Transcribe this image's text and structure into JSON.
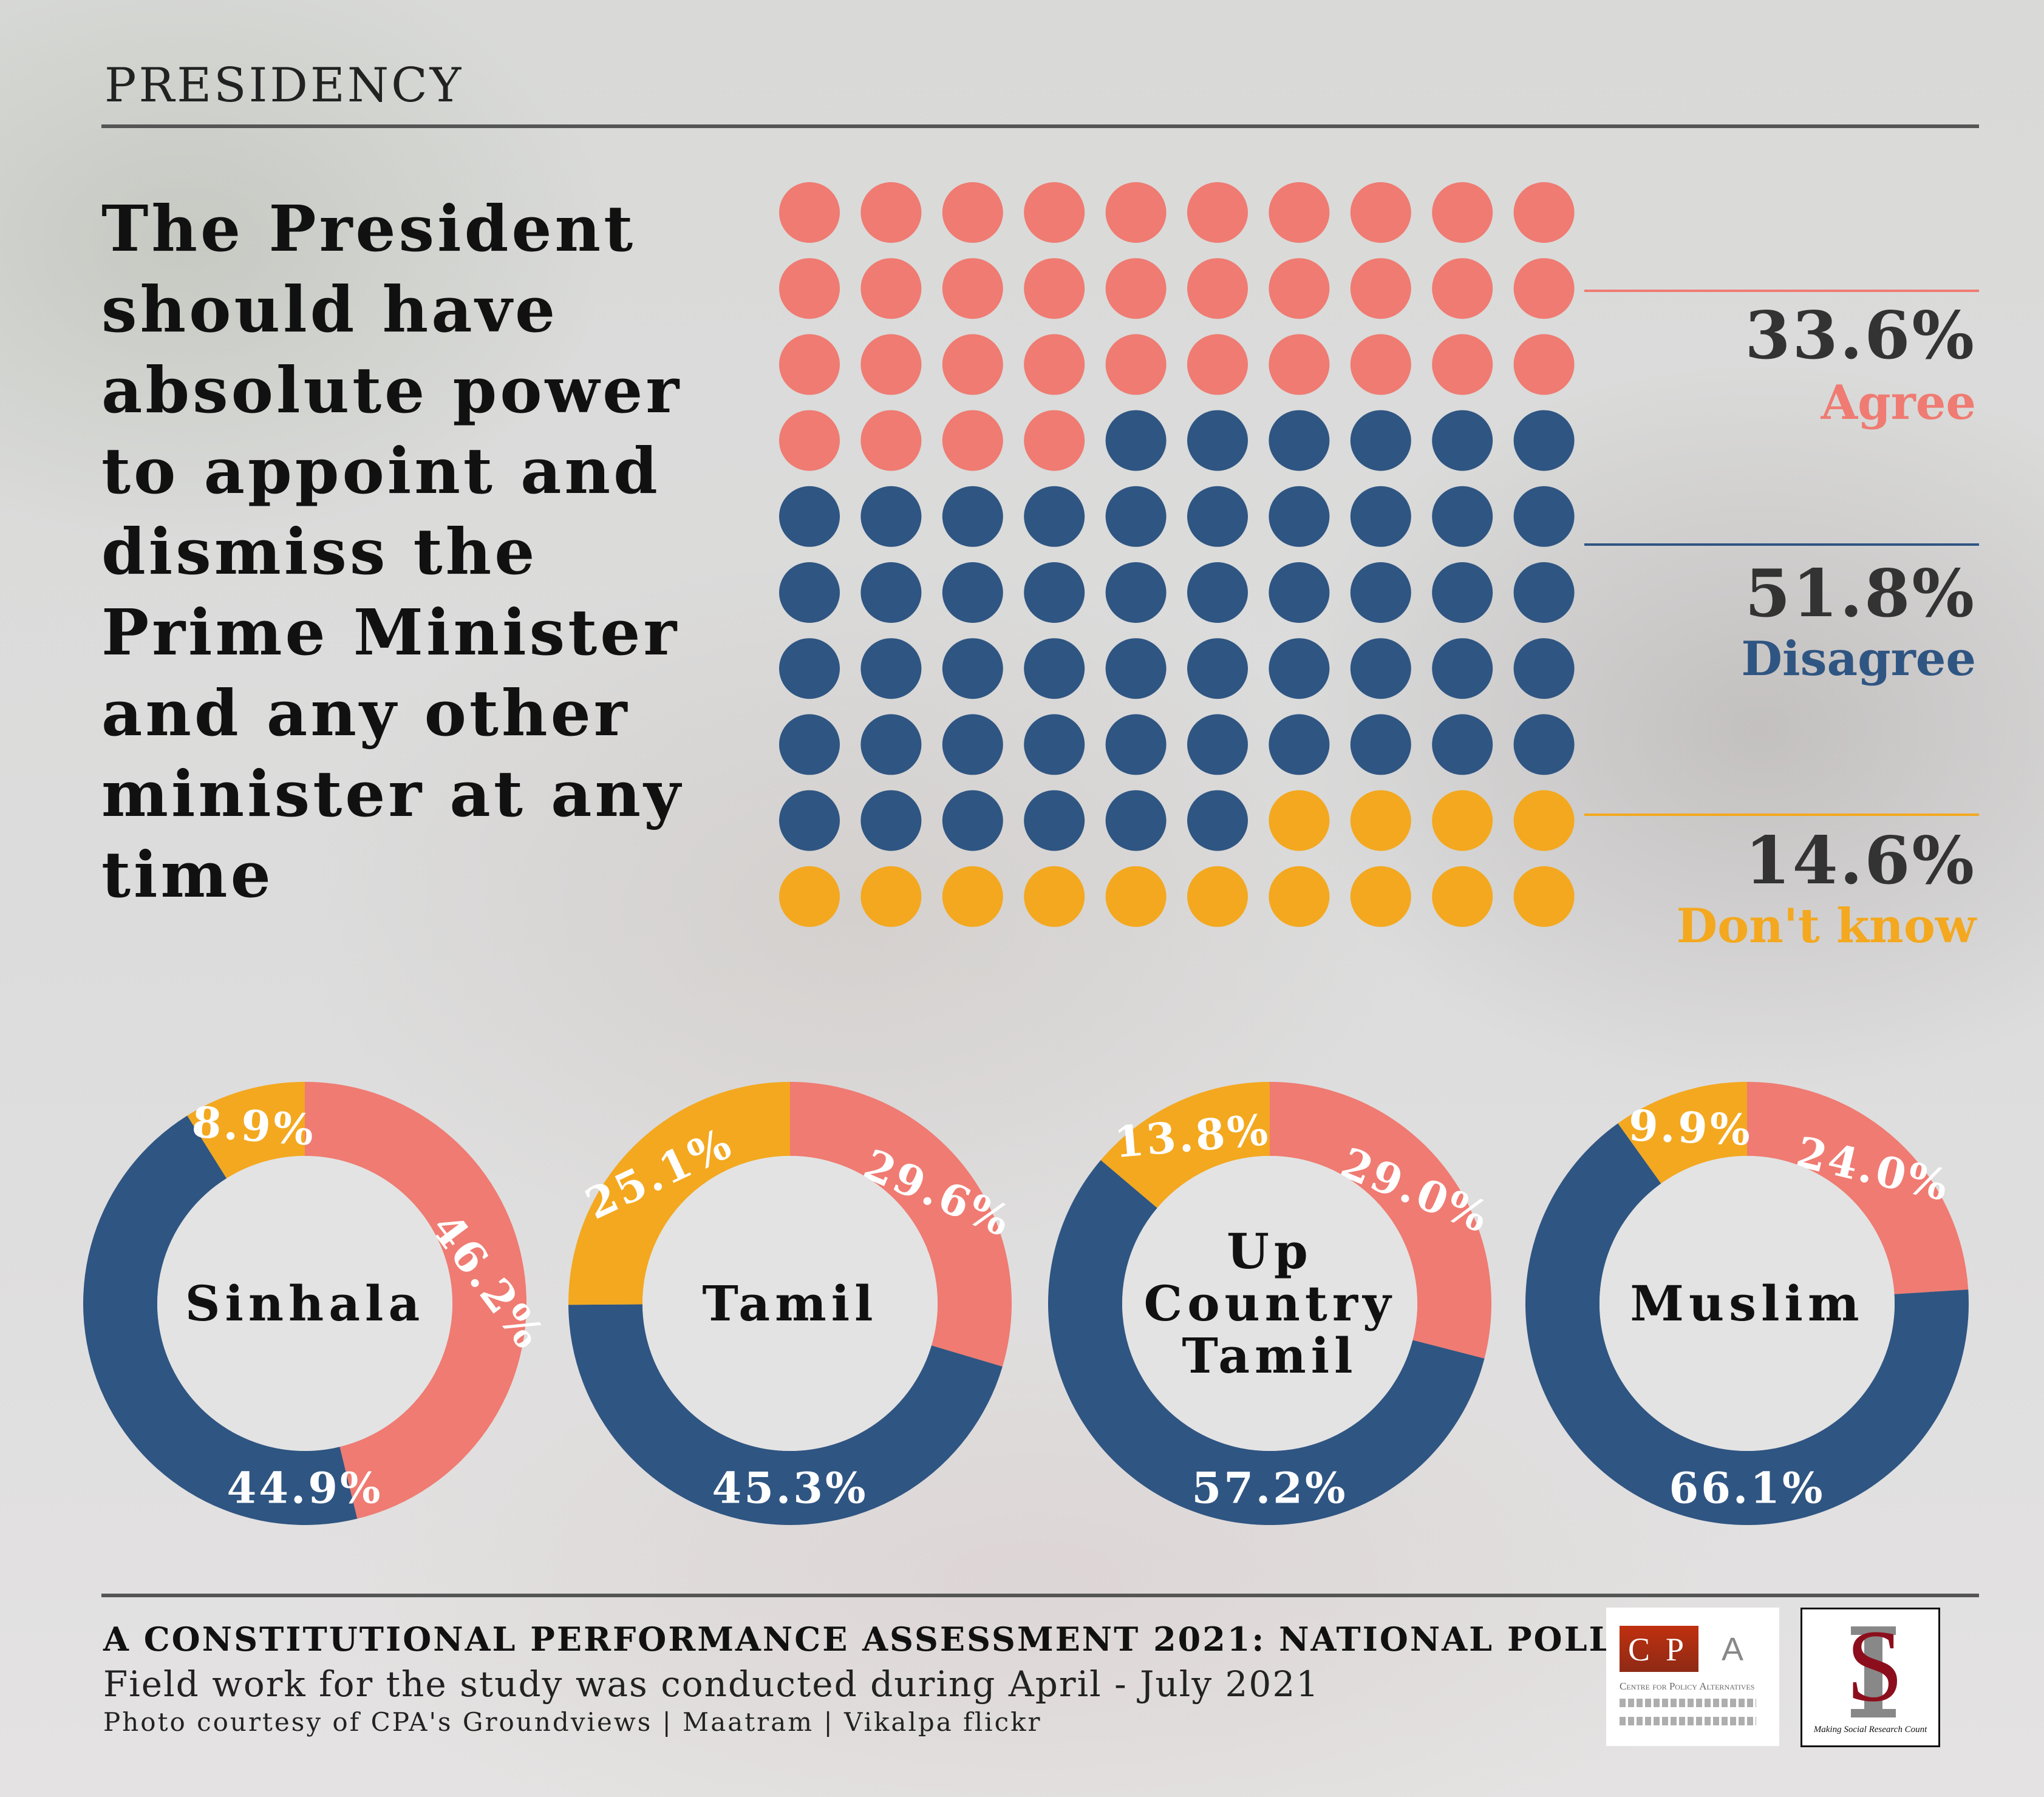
{
  "section_title": "PRESIDENCY",
  "question": "The President should have absolute power to appoint and dismiss the Prime Minister and any other minister at any time",
  "colors": {
    "agree": "#ef7b72",
    "disagree": "#2f5582",
    "dont_know": "#f3a81f",
    "donut_center": "#e3e3e3"
  },
  "chart_data": [
    {
      "type": "waffle",
      "grid": [
        10,
        10
      ],
      "categories": [
        "Agree",
        "Disagree",
        "Don't know"
      ],
      "values": [
        33.6,
        51.8,
        14.6
      ],
      "labels": [
        "33.6%",
        "51.8%",
        "14.6%"
      ]
    },
    {
      "type": "pie",
      "variant": "donut",
      "groups": [
        {
          "name": "Sinhala",
          "values": [
            46.2,
            44.9,
            8.9
          ],
          "labels": [
            "46.2%",
            "44.9%",
            "8.9%"
          ]
        },
        {
          "name": "Tamil",
          "values": [
            29.6,
            45.3,
            25.1
          ],
          "labels": [
            "29.6%",
            "45.3%",
            "25.1%"
          ]
        },
        {
          "name": "Up Country Tamil",
          "values": [
            29.0,
            57.2,
            13.8
          ],
          "labels": [
            "29.0%",
            "57.2%",
            "13.8%"
          ]
        },
        {
          "name": "Muslim",
          "values": [
            24.0,
            66.1,
            9.9
          ],
          "labels": [
            "24.0%",
            "66.1%",
            "9.9%"
          ]
        }
      ],
      "series_order": [
        "Agree",
        "Disagree",
        "Don't know"
      ]
    }
  ],
  "footer": {
    "title": "A CONSTITUTIONAL PERFORMANCE ASSESSMENT 2021: NATIONAL POLL",
    "subtitle": "Field work for the study was conducted during April - July 2021",
    "credit": "Photo courtesy of CPA's Groundviews | Maatram | Vikalpa flickr"
  },
  "logos": {
    "cpa": {
      "letters": [
        "C",
        "P",
        "A"
      ],
      "name": "Centre for Policy Alternatives"
    },
    "msrc": {
      "tagline": "Making Social Research Count"
    }
  }
}
